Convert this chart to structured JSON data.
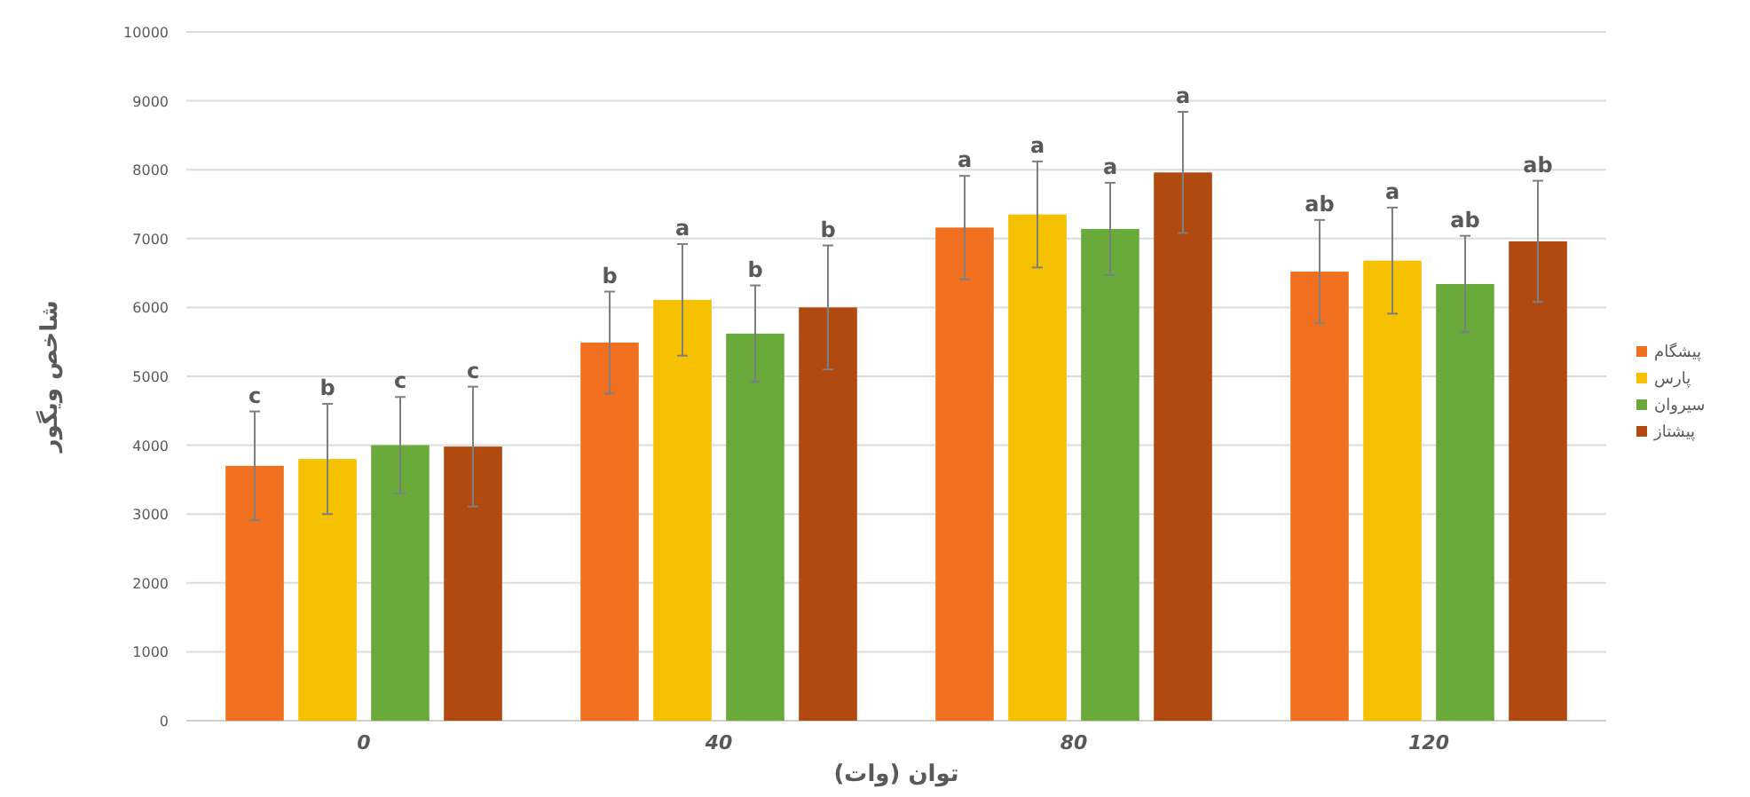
{
  "chart_data": {
    "type": "bar",
    "xlabel": "توان (وات)",
    "ylabel": "شاخص ویگور",
    "categories": [
      "0",
      "40",
      "80",
      "120"
    ],
    "series": [
      {
        "name": "پیشگام",
        "color": "#f07020",
        "values": [
          3700,
          5490,
          7160,
          6520
        ],
        "errors": [
          790,
          740,
          750,
          750
        ],
        "value_labels": [
          "c",
          "b",
          "a",
          "ab"
        ]
      },
      {
        "name": "پارس",
        "color": "#f5c000",
        "values": [
          3800,
          6110,
          7350,
          6680
        ],
        "errors": [
          800,
          810,
          770,
          770
        ],
        "value_labels": [
          "b",
          "a",
          "a",
          "a"
        ]
      },
      {
        "name": "سیروان",
        "color": "#6aaa3a",
        "values": [
          4000,
          5620,
          7140,
          6340
        ],
        "errors": [
          700,
          700,
          670,
          700
        ],
        "value_labels": [
          "c",
          "b",
          "a",
          "ab"
        ]
      },
      {
        "name": "پیشتاز",
        "color": "#b04a10",
        "values": [
          3980,
          6000,
          7960,
          6960
        ],
        "errors": [
          870,
          900,
          880,
          880
        ],
        "value_labels": [
          "c",
          "b",
          "a",
          "ab"
        ]
      }
    ],
    "ylim": [
      0,
      10000
    ],
    "yticks": [
      0,
      1000,
      2000,
      3000,
      4000,
      5000,
      6000,
      7000,
      8000,
      9000,
      10000
    ],
    "grid": "y",
    "legend": "right"
  }
}
